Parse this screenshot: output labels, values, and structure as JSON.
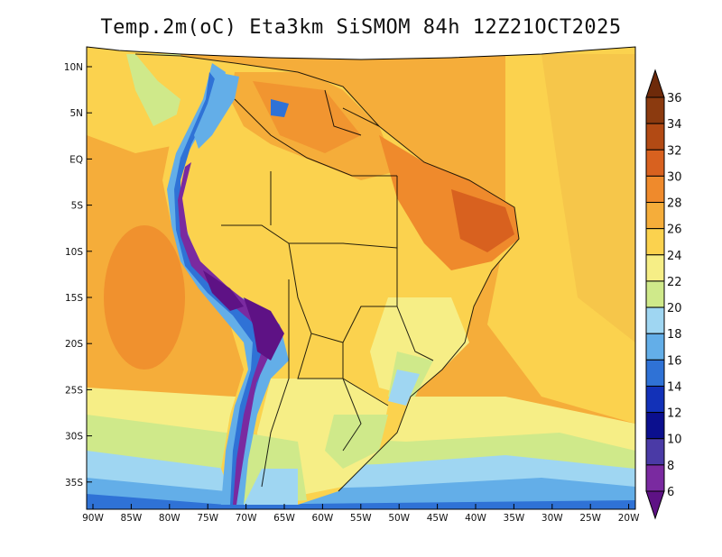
{
  "title": "Temp.2m(oC) Eta3km SiSMOM 84h 12Z21OCT2025",
  "lat_ticks": [
    "10N",
    "5N",
    "EQ",
    "5S",
    "10S",
    "15S",
    "20S",
    "25S",
    "30S",
    "35S"
  ],
  "lon_ticks": [
    "90W",
    "85W",
    "80W",
    "75W",
    "70W",
    "65W",
    "60W",
    "55W",
    "50W",
    "45W",
    "40W",
    "35W",
    "30W",
    "25W",
    "20W"
  ],
  "colorbar": {
    "labels": [
      "36",
      "34",
      "32",
      "30",
      "28",
      "26",
      "24",
      "22",
      "20",
      "18",
      "16",
      "14",
      "12",
      "10",
      "8",
      "6"
    ],
    "colors": [
      "#6e2a0a",
      "#8b3a0f",
      "#b24a14",
      "#d8611f",
      "#ef8a2c",
      "#f5ad3a",
      "#fbd24e",
      "#f6ee86",
      "#cfe98a",
      "#9fd6f2",
      "#63aee8",
      "#2f72d6",
      "#1231b8",
      "#0b0f8e",
      "#4a3aa6",
      "#7a2aa0",
      "#5e1285"
    ]
  }
}
